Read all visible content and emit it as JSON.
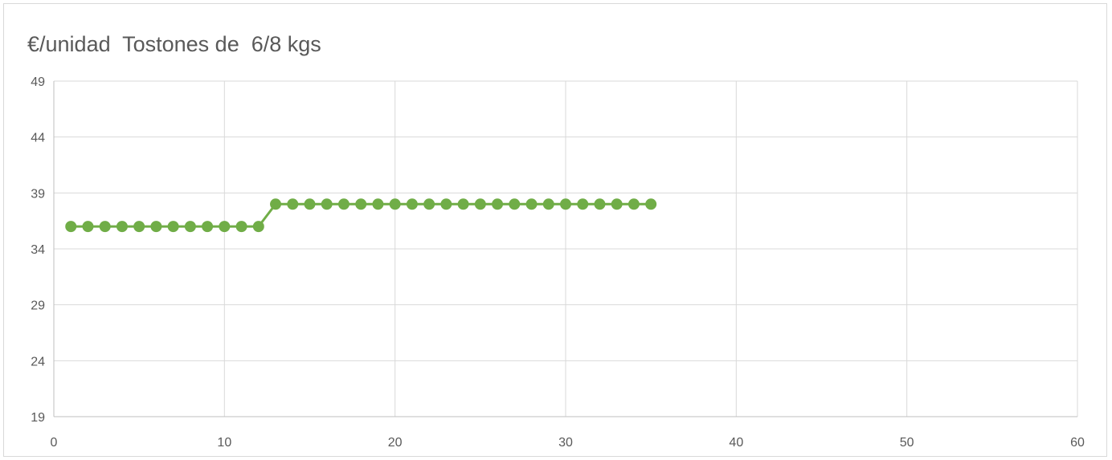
{
  "chart_data": {
    "type": "scatter",
    "title": "€/unidad  Tostones de  6/8 kgs",
    "xlabel": "",
    "ylabel": "",
    "xlim": [
      0,
      60
    ],
    "ylim": [
      19,
      49
    ],
    "xticks": [
      0,
      10,
      20,
      30,
      40,
      50,
      60
    ],
    "yticks": [
      19,
      24,
      29,
      34,
      39,
      44,
      49
    ],
    "xtick_labels": [
      "0",
      "10",
      "20",
      "30",
      "40",
      "50",
      "60"
    ],
    "ytick_labels": [
      "19",
      "24",
      "29",
      "34",
      "39",
      "44",
      "49"
    ],
    "grid": true,
    "legend": "none",
    "series": [
      {
        "color": "#70ad47",
        "style": "lines-and-markers",
        "x": [
          1,
          2,
          3,
          4,
          5,
          6,
          7,
          8,
          9,
          10,
          11,
          12,
          13,
          14,
          15,
          16,
          17,
          18,
          19,
          20,
          21,
          22,
          23,
          24,
          25,
          26,
          27,
          28,
          29,
          30,
          31,
          32,
          33,
          34,
          35
        ],
        "y": [
          36,
          36,
          36,
          36,
          36,
          36,
          36,
          36,
          36,
          36,
          36,
          36,
          38,
          38,
          38,
          38,
          38,
          38,
          38,
          38,
          38,
          38,
          38,
          38,
          38,
          38,
          38,
          38,
          38,
          38,
          38,
          38,
          38,
          38,
          38
        ]
      }
    ]
  }
}
